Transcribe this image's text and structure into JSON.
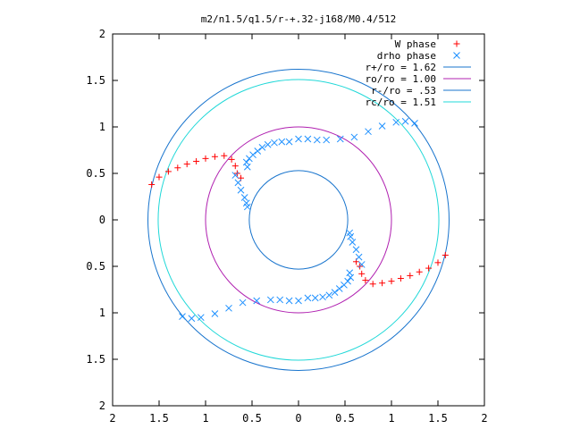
{
  "chart_data": {
    "type": "scatter",
    "title": "m2/n1.5/q1.5/r-+.32-j168/M0.4/512",
    "xlim": [
      -2,
      2
    ],
    "ylim": [
      -2,
      2
    ],
    "x_tick_values": [
      -2,
      -1.5,
      -1,
      -0.5,
      0,
      0.5,
      1,
      1.5,
      2
    ],
    "x_tick_labels": [
      "2",
      "1.5",
      "1",
      "0.5",
      "0",
      "0.5",
      "1",
      "1.5",
      "2"
    ],
    "y_tick_values": [
      2,
      1.5,
      1,
      0.5,
      0,
      -0.5,
      -1,
      -1.5,
      -2
    ],
    "y_tick_labels": [
      "2",
      "1.5",
      "1",
      "0.5",
      "0",
      "0.5",
      "1",
      "1.5",
      "2"
    ],
    "grid": false,
    "legend_position": "top-right",
    "legend": [
      {
        "label": "W phase",
        "kind": "point",
        "marker": "plus",
        "color": "#ff0000"
      },
      {
        "label": "drho phase",
        "kind": "point",
        "marker": "cross",
        "color": "#1e90ff"
      },
      {
        "label": "r+/ro = 1.62",
        "kind": "line",
        "color": "#1874cd"
      },
      {
        "label": "ro/ro = 1.00",
        "kind": "line",
        "color": "#b020b0"
      },
      {
        "label": "r-/ro = .53",
        "kind": "line",
        "color": "#1874cd"
      },
      {
        "label": "rc/ro = 1.51",
        "kind": "line",
        "color": "#20d8d8"
      }
    ],
    "circles": [
      {
        "radius": 1.62,
        "color": "#1874cd"
      },
      {
        "radius": 1.0,
        "color": "#b020b0"
      },
      {
        "radius": 0.53,
        "color": "#1874cd"
      },
      {
        "radius": 1.51,
        "color": "#20d8d8"
      }
    ],
    "series": [
      {
        "name": "W phase",
        "marker": "plus",
        "color": "#ff0000",
        "x": [
          -1.58,
          -1.5,
          -1.4,
          -1.3,
          -1.2,
          -1.1,
          -1.0,
          -0.9,
          -0.8,
          -0.72,
          -0.68,
          -0.66,
          -0.62,
          0.62,
          0.66,
          0.68,
          0.72,
          0.8,
          0.9,
          1.0,
          1.1,
          1.2,
          1.3,
          1.4,
          1.5,
          1.58
        ],
        "y": [
          0.38,
          0.46,
          0.52,
          0.56,
          0.6,
          0.63,
          0.66,
          0.68,
          0.69,
          0.65,
          0.58,
          0.5,
          0.45,
          -0.45,
          -0.5,
          -0.58,
          -0.65,
          -0.69,
          -0.68,
          -0.66,
          -0.63,
          -0.6,
          -0.56,
          -0.52,
          -0.46,
          -0.38
        ]
      },
      {
        "name": "drho phase",
        "marker": "cross",
        "color": "#1e90ff",
        "x": [
          -0.68,
          -0.65,
          -0.62,
          -0.58,
          -0.56,
          -0.55,
          -0.55,
          -0.56,
          -0.53,
          -0.49,
          -0.44,
          -0.39,
          -0.33,
          -0.26,
          -0.18,
          -0.1,
          0.0,
          0.1,
          0.2,
          0.3,
          0.45,
          0.6,
          0.75,
          0.9,
          1.05,
          1.15,
          1.25,
          0.68,
          0.65,
          0.62,
          0.58,
          0.56,
          0.55,
          0.55,
          0.56,
          0.53,
          0.49,
          0.44,
          0.39,
          0.33,
          0.26,
          0.18,
          0.1,
          0.0,
          -0.1,
          -0.2,
          -0.3,
          -0.45,
          -0.6,
          -0.75,
          -0.9,
          -1.05,
          -1.15,
          -1.25
        ],
        "y": [
          0.48,
          0.4,
          0.32,
          0.24,
          0.18,
          0.14,
          0.57,
          0.62,
          0.66,
          0.7,
          0.74,
          0.78,
          0.81,
          0.83,
          0.84,
          0.84,
          0.87,
          0.87,
          0.86,
          0.86,
          0.87,
          0.89,
          0.95,
          1.01,
          1.05,
          1.06,
          1.04,
          -0.48,
          -0.4,
          -0.32,
          -0.24,
          -0.18,
          -0.14,
          -0.57,
          -0.62,
          -0.66,
          -0.7,
          -0.74,
          -0.78,
          -0.81,
          -0.83,
          -0.84,
          -0.84,
          -0.87,
          -0.87,
          -0.86,
          -0.86,
          -0.87,
          -0.89,
          -0.95,
          -1.01,
          -1.05,
          -1.06,
          -1.04
        ]
      }
    ]
  }
}
